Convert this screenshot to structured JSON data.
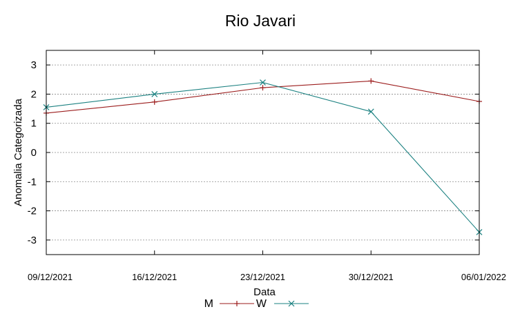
{
  "chart_data": {
    "type": "line",
    "title": "Rio Javari",
    "xlabel": "Data",
    "ylabel": "Anomalia Categorizada",
    "categories": [
      "09/12/2021",
      "16/12/2021",
      "23/12/2021",
      "30/12/2021",
      "06/01/2022"
    ],
    "ylim": [
      -3.5,
      3.5
    ],
    "yticks": [
      3,
      2,
      1,
      0,
      -1,
      -2,
      -3
    ],
    "grid": true,
    "legend_position": "bottom-center",
    "series": [
      {
        "name": "M",
        "marker": "+",
        "color": "#9b1b1b",
        "values": [
          1.35,
          1.73,
          2.22,
          2.45,
          1.75
        ]
      },
      {
        "name": "W",
        "marker": "x",
        "color": "#1a8080",
        "values": [
          1.55,
          2.0,
          2.4,
          1.4,
          -2.73
        ]
      }
    ]
  }
}
